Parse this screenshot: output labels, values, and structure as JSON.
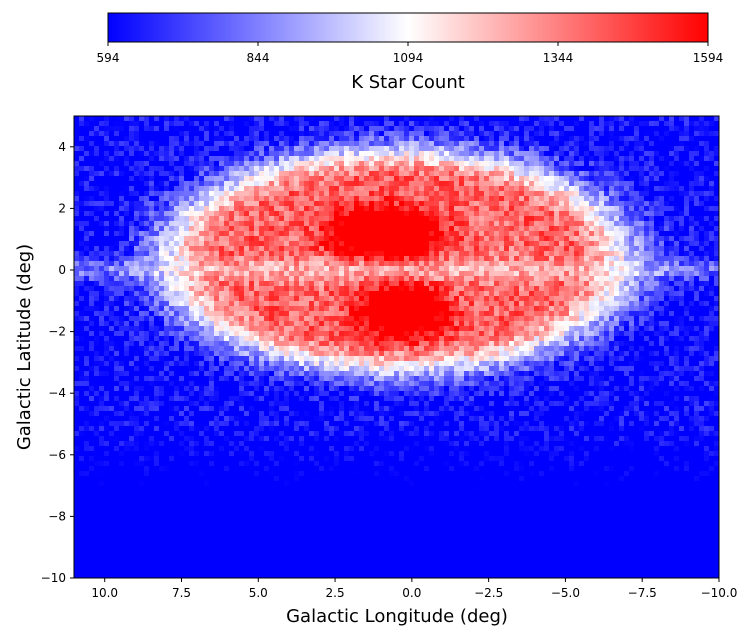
{
  "chart_data": {
    "type": "heatmap",
    "colorbar": {
      "label": "K Star Count",
      "ticks": [
        "594",
        "844",
        "1094",
        "1344",
        "1594"
      ],
      "range": [
        594,
        1594
      ],
      "colormap": "bwr",
      "orientation": "horizontal",
      "position": "top"
    },
    "xlabel": "Galactic Longitude (deg)",
    "ylabel": "Galactic Latitude (deg)",
    "xlim": [
      11,
      -10
    ],
    "ylim": [
      -10,
      5
    ],
    "x_ticks": [
      {
        "value": 10.0,
        "label": "10.0"
      },
      {
        "value": 7.5,
        "label": "7.5"
      },
      {
        "value": 5.0,
        "label": "5.0"
      },
      {
        "value": 2.5,
        "label": "2.5"
      },
      {
        "value": 0.0,
        "label": "0.0"
      },
      {
        "value": -2.5,
        "label": "−2.5"
      },
      {
        "value": -5.0,
        "label": "−5.0"
      },
      {
        "value": -7.5,
        "label": "−7.5"
      },
      {
        "value": -10.0,
        "label": "−10.0"
      }
    ],
    "y_ticks": [
      {
        "value": 4,
        "label": "4"
      },
      {
        "value": 2,
        "label": "2"
      },
      {
        "value": 0,
        "label": "0"
      },
      {
        "value": -2,
        "label": "−2"
      },
      {
        "value": -4,
        "label": "−4"
      },
      {
        "value": -6,
        "label": "−6"
      },
      {
        "value": -8,
        "label": "−8"
      },
      {
        "value": -10,
        "label": "−10"
      }
    ],
    "features": {
      "background_level": 594,
      "red_ring": {
        "center_l": 0.5,
        "center_b": 0.3,
        "semi_axis_l": 8.2,
        "semi_axis_b": 3.9,
        "peak": 1380
      },
      "central_x_peak_upper": {
        "l": 0.9,
        "b": 1.2,
        "peak": 1594
      },
      "central_x_peak_lower": {
        "l": 0.3,
        "b": -1.3,
        "peak": 1594
      },
      "galactic_plane": {
        "b": 0.0,
        "level": 1094
      }
    },
    "grid": false,
    "legend": "none"
  }
}
